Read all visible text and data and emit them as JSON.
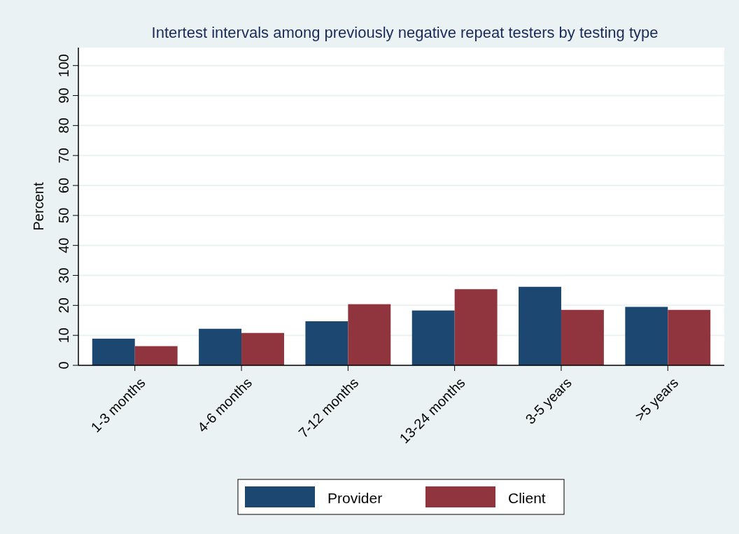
{
  "chart_data": {
    "type": "bar",
    "title": "Intertest intervals among previously negative repeat testers by testing type",
    "ylabel": "Percent",
    "categories": [
      "1-3 months",
      "4-6 months",
      "7-12 months",
      "13-24 months",
      "3-5 years",
      ">5 years"
    ],
    "series": [
      {
        "name": "Provider",
        "color": "#1c4770",
        "values": [
          8.9,
          12.2,
          14.7,
          18.3,
          26.2,
          19.5
        ]
      },
      {
        "name": "Client",
        "color": "#90353d",
        "values": [
          6.4,
          10.8,
          20.4,
          25.4,
          18.5,
          18.5
        ]
      }
    ],
    "ylim": [
      0,
      106
    ],
    "yticks": [
      0,
      10,
      20,
      30,
      40,
      50,
      60,
      70,
      80,
      90,
      100
    ],
    "grid": "y",
    "legend": "bottom"
  }
}
